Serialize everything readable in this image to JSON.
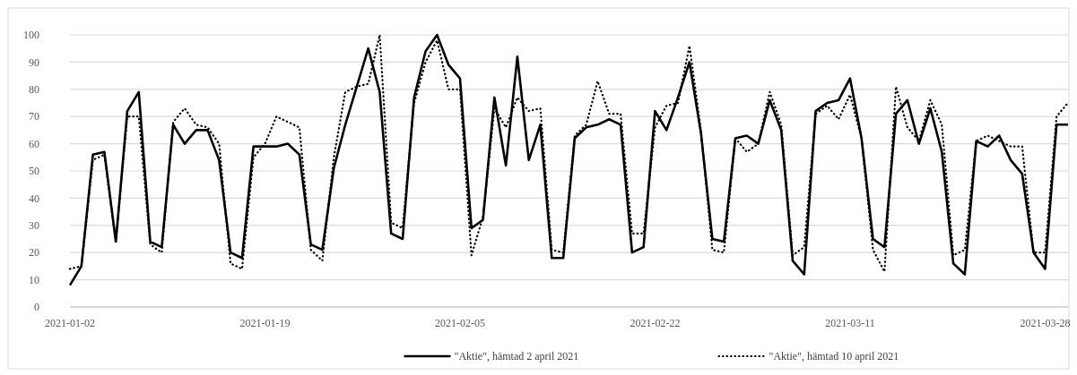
{
  "chart_data": {
    "type": "line",
    "x": [
      "2021-01-02",
      "2021-01-03",
      "2021-01-04",
      "2021-01-05",
      "2021-01-06",
      "2021-01-07",
      "2021-01-08",
      "2021-01-09",
      "2021-01-10",
      "2021-01-11",
      "2021-01-12",
      "2021-01-13",
      "2021-01-14",
      "2021-01-15",
      "2021-01-16",
      "2021-01-17",
      "2021-01-18",
      "2021-01-19",
      "2021-01-20",
      "2021-01-21",
      "2021-01-22",
      "2021-01-23",
      "2021-01-24",
      "2021-01-25",
      "2021-01-26",
      "2021-01-27",
      "2021-01-28",
      "2021-01-29",
      "2021-01-30",
      "2021-01-31",
      "2021-02-01",
      "2021-02-02",
      "2021-02-03",
      "2021-02-04",
      "2021-02-05",
      "2021-02-06",
      "2021-02-07",
      "2021-02-08",
      "2021-02-09",
      "2021-02-10",
      "2021-02-11",
      "2021-02-12",
      "2021-02-13",
      "2021-02-14",
      "2021-02-15",
      "2021-02-16",
      "2021-02-17",
      "2021-02-18",
      "2021-02-19",
      "2021-02-20",
      "2021-02-21",
      "2021-02-22",
      "2021-02-23",
      "2021-02-24",
      "2021-02-25",
      "2021-02-26",
      "2021-02-27",
      "2021-02-28",
      "2021-03-01",
      "2021-03-02",
      "2021-03-03",
      "2021-03-04",
      "2021-03-05",
      "2021-03-06",
      "2021-03-07",
      "2021-03-08",
      "2021-03-09",
      "2021-03-10",
      "2021-03-11",
      "2021-03-12",
      "2021-03-13",
      "2021-03-14",
      "2021-03-15",
      "2021-03-16",
      "2021-03-17",
      "2021-03-18",
      "2021-03-19",
      "2021-03-20",
      "2021-03-21",
      "2021-03-22",
      "2021-03-23",
      "2021-03-24",
      "2021-03-25",
      "2021-03-26",
      "2021-03-27",
      "2021-03-28",
      "2021-03-29",
      "2021-03-30"
    ],
    "series": [
      {
        "name": "\"Aktie\", hämtad 2 april 2021",
        "color": "#000000",
        "line_style": "solid",
        "values": [
          8,
          15,
          56,
          57,
          24,
          72,
          79,
          24,
          22,
          67,
          60,
          65,
          65,
          54,
          20,
          18,
          59,
          59,
          59,
          60,
          56,
          23,
          21,
          51,
          67,
          81,
          95,
          79,
          27,
          25,
          77,
          94,
          100,
          89,
          84,
          29,
          32,
          77,
          52,
          92,
          54,
          67,
          18,
          18,
          62,
          66,
          67,
          69,
          67,
          20,
          22,
          72,
          65,
          77,
          90,
          64,
          25,
          24,
          62,
          63,
          60,
          76,
          65,
          17,
          12,
          72,
          75,
          76,
          84,
          62,
          25,
          22,
          71,
          76,
          60,
          73,
          57,
          16,
          12,
          61,
          59,
          63,
          54,
          49,
          20,
          14,
          67,
          67
        ]
      },
      {
        "name": "\"Aktie\", hämtad 10 april 2021",
        "color": "#000000",
        "line_style": "dotted",
        "values": [
          14,
          15,
          54,
          56,
          24,
          70,
          70,
          23,
          20,
          68,
          73,
          67,
          66,
          60,
          16,
          14,
          55,
          60,
          70,
          68,
          66,
          21,
          17,
          55,
          79,
          81,
          82,
          100,
          31,
          29,
          75,
          90,
          98,
          80,
          80,
          19,
          33,
          73,
          66,
          77,
          72,
          73,
          21,
          20,
          63,
          67,
          83,
          71,
          71,
          27,
          27,
          66,
          74,
          75,
          96,
          65,
          21,
          20,
          62,
          57,
          60,
          79,
          67,
          19,
          22,
          71,
          74,
          69,
          78,
          62,
          21,
          13,
          81,
          66,
          61,
          76,
          67,
          19,
          21,
          61,
          63,
          61,
          59,
          59,
          20,
          20,
          70,
          75
        ]
      }
    ],
    "xlim": [
      "2021-01-02",
      "2021-03-30"
    ],
    "xticks": [
      "2021-01-02",
      "2021-01-19",
      "2021-02-05",
      "2021-02-22",
      "2021-03-11",
      "2021-03-28"
    ],
    "ylim": [
      0,
      100
    ],
    "yticks": [
      0,
      10,
      20,
      30,
      40,
      50,
      60,
      70,
      80,
      90,
      100
    ],
    "grid": "y",
    "legend": "bottom"
  }
}
